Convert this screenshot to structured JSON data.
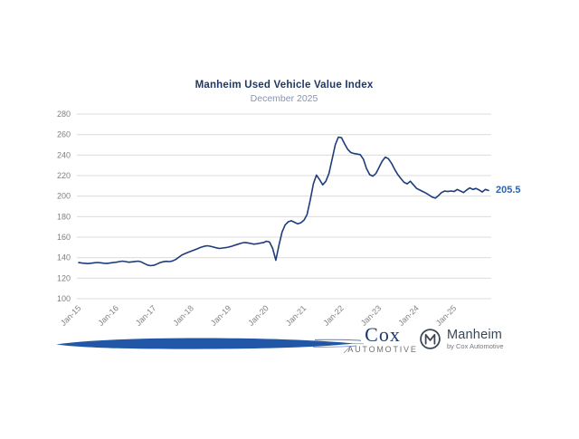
{
  "page": {
    "background": "#ffffff"
  },
  "chart": {
    "title": "Manheim Used Vehicle Value Index",
    "subtitle": "December 2025",
    "end_label": "205.5",
    "colors": {
      "line": "#1e3c7b",
      "title": "#1f3864",
      "subtitle": "#8795ad",
      "end_label": "#2e64ad",
      "grid": "#dcdcdc",
      "tick_text": "#7f7f7f",
      "swoosh": "#2257a7"
    }
  },
  "chart_data": {
    "type": "line",
    "title": "Manheim Used Vehicle Value Index",
    "subtitle": "December 2025",
    "series_name": "Used Vehicle Value Index",
    "x_start": "Jan-2015",
    "x_end": "Dec-2025",
    "x_interval": "monthly",
    "x_tick_labels": [
      "Jan-15",
      "Jan-16",
      "Jan-17",
      "Jan-18",
      "Jan-19",
      "Jan-20",
      "Jan-21",
      "Jan-22",
      "Jan-23",
      "Jan-24",
      "Jan-25"
    ],
    "ylim": [
      100,
      280
    ],
    "y_tick_step": 20,
    "grid": "horizontal",
    "legend": "none",
    "last_value": 205.5,
    "values": [
      135.2,
      134.8,
      134.5,
      134.2,
      134.6,
      135.0,
      135.3,
      135.0,
      134.6,
      134.3,
      134.8,
      135.2,
      135.6,
      136.2,
      136.6,
      136.2,
      135.6,
      135.9,
      136.3,
      136.6,
      135.8,
      134.2,
      132.8,
      132.2,
      132.6,
      133.8,
      135.2,
      136.0,
      136.4,
      136.2,
      136.8,
      138.2,
      140.5,
      142.6,
      144.0,
      145.2,
      146.4,
      147.6,
      148.8,
      150.0,
      151.0,
      151.6,
      151.2,
      150.4,
      149.6,
      149.0,
      149.4,
      149.8,
      150.4,
      151.2,
      152.2,
      153.2,
      154.2,
      154.8,
      154.4,
      153.8,
      153.2,
      153.6,
      154.2,
      154.6,
      156.0,
      155.2,
      149.0,
      137.5,
      152.0,
      165.0,
      172.0,
      175.0,
      176.0,
      174.5,
      173.0,
      174.0,
      176.5,
      182.0,
      196.0,
      212.0,
      220.5,
      216.0,
      211.0,
      214.5,
      222.0,
      236.0,
      250.0,
      257.5,
      257.0,
      251.0,
      245.5,
      242.5,
      241.5,
      241.0,
      240.5,
      236.0,
      227.0,
      221.0,
      219.5,
      222.0,
      228.0,
      234.0,
      238.0,
      236.5,
      232.0,
      226.0,
      221.0,
      217.0,
      213.5,
      212.0,
      214.5,
      211.0,
      207.5,
      206.0,
      204.5,
      203.0,
      201.0,
      199.0,
      198.0,
      200.5,
      203.5,
      205.0,
      204.5,
      205.0,
      204.5,
      206.5,
      205.0,
      203.5,
      206.0,
      208.0,
      206.5,
      207.5,
      206.0,
      204.0,
      206.5,
      205.5
    ]
  },
  "footer": {
    "cox_logo": {
      "word": "Cox",
      "sub": "AUTOMOTIVE"
    },
    "manheim_logo": {
      "word": "Manheim",
      "sub": "by Cox Automotive"
    }
  }
}
